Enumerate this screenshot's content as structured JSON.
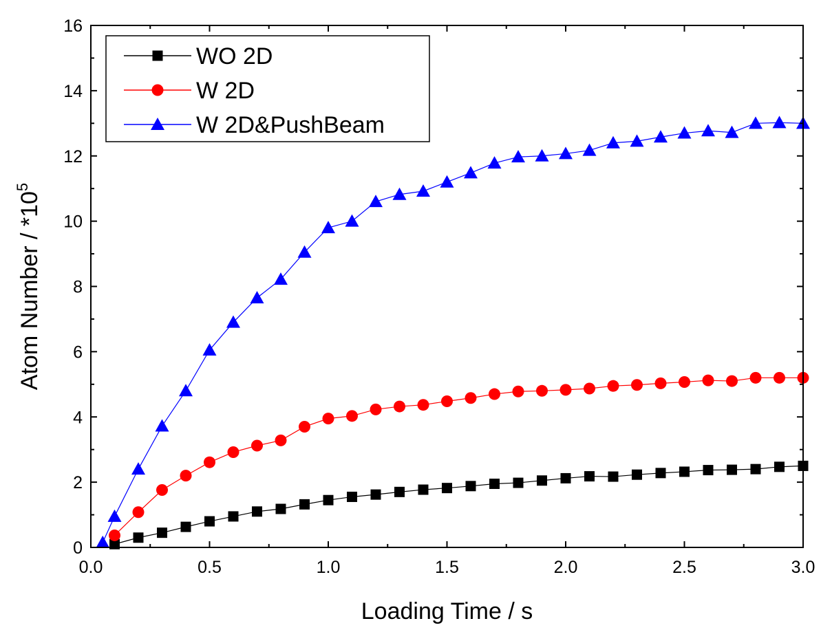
{
  "chart_data": {
    "type": "line",
    "title": "",
    "xlabel": "Loading Time / s",
    "ylabel_main": "Atom Number / *10",
    "ylabel_sup": "5",
    "xlim": [
      0,
      3.0
    ],
    "ylim": [
      0,
      16
    ],
    "x_ticks": [
      "0.0",
      "0.5",
      "1.0",
      "1.5",
      "2.0",
      "2.5",
      "3.0"
    ],
    "y_ticks": [
      "0",
      "2",
      "4",
      "6",
      "8",
      "10",
      "12",
      "14",
      "16"
    ],
    "grid": false,
    "legend_position": "top-left",
    "series": [
      {
        "name": "WO 2D",
        "color": "#000000",
        "marker": "square",
        "x": [
          0.1,
          0.2,
          0.3,
          0.4,
          0.5,
          0.6,
          0.7,
          0.8,
          0.9,
          1.0,
          1.1,
          1.2,
          1.3,
          1.4,
          1.5,
          1.6,
          1.7,
          1.8,
          1.9,
          2.0,
          2.1,
          2.2,
          2.3,
          2.4,
          2.5,
          2.6,
          2.7,
          2.8,
          2.9,
          3.0
        ],
        "y": [
          0.1,
          0.3,
          0.45,
          0.63,
          0.8,
          0.95,
          1.1,
          1.18,
          1.32,
          1.45,
          1.55,
          1.62,
          1.7,
          1.77,
          1.82,
          1.88,
          1.95,
          1.98,
          2.05,
          2.12,
          2.18,
          2.17,
          2.23,
          2.28,
          2.32,
          2.37,
          2.38,
          2.4,
          2.47,
          2.5
        ]
      },
      {
        "name": "W 2D",
        "color": "#ff0000",
        "marker": "circle",
        "x": [
          0.1,
          0.2,
          0.3,
          0.4,
          0.5,
          0.6,
          0.7,
          0.8,
          0.9,
          1.0,
          1.1,
          1.2,
          1.3,
          1.4,
          1.5,
          1.6,
          1.7,
          1.8,
          1.9,
          2.0,
          2.1,
          2.2,
          2.3,
          2.4,
          2.5,
          2.6,
          2.7,
          2.8,
          2.9,
          3.0
        ],
        "y": [
          0.37,
          1.08,
          1.76,
          2.2,
          2.61,
          2.92,
          3.12,
          3.28,
          3.7,
          3.95,
          4.03,
          4.23,
          4.32,
          4.37,
          4.48,
          4.58,
          4.7,
          4.78,
          4.8,
          4.83,
          4.87,
          4.95,
          4.98,
          5.03,
          5.07,
          5.12,
          5.1,
          5.2,
          5.2,
          5.2
        ]
      },
      {
        "name": "W 2D&PushBeam",
        "color": "#0000ff",
        "marker": "triangle",
        "x": [
          0.05,
          0.1,
          0.2,
          0.3,
          0.4,
          0.5,
          0.6,
          0.7,
          0.8,
          0.9,
          1.0,
          1.1,
          1.2,
          1.3,
          1.4,
          1.5,
          1.6,
          1.7,
          1.8,
          1.9,
          2.0,
          2.1,
          2.2,
          2.3,
          2.4,
          2.5,
          2.6,
          2.7,
          2.8,
          2.9,
          3.0
        ],
        "y": [
          0.15,
          0.95,
          2.4,
          3.72,
          4.8,
          6.05,
          6.9,
          7.65,
          8.22,
          9.05,
          9.8,
          10.0,
          10.6,
          10.82,
          10.92,
          11.2,
          11.48,
          11.78,
          11.97,
          12.0,
          12.07,
          12.17,
          12.4,
          12.45,
          12.58,
          12.7,
          12.77,
          12.72,
          13.0,
          13.02,
          13.0
        ]
      }
    ]
  }
}
